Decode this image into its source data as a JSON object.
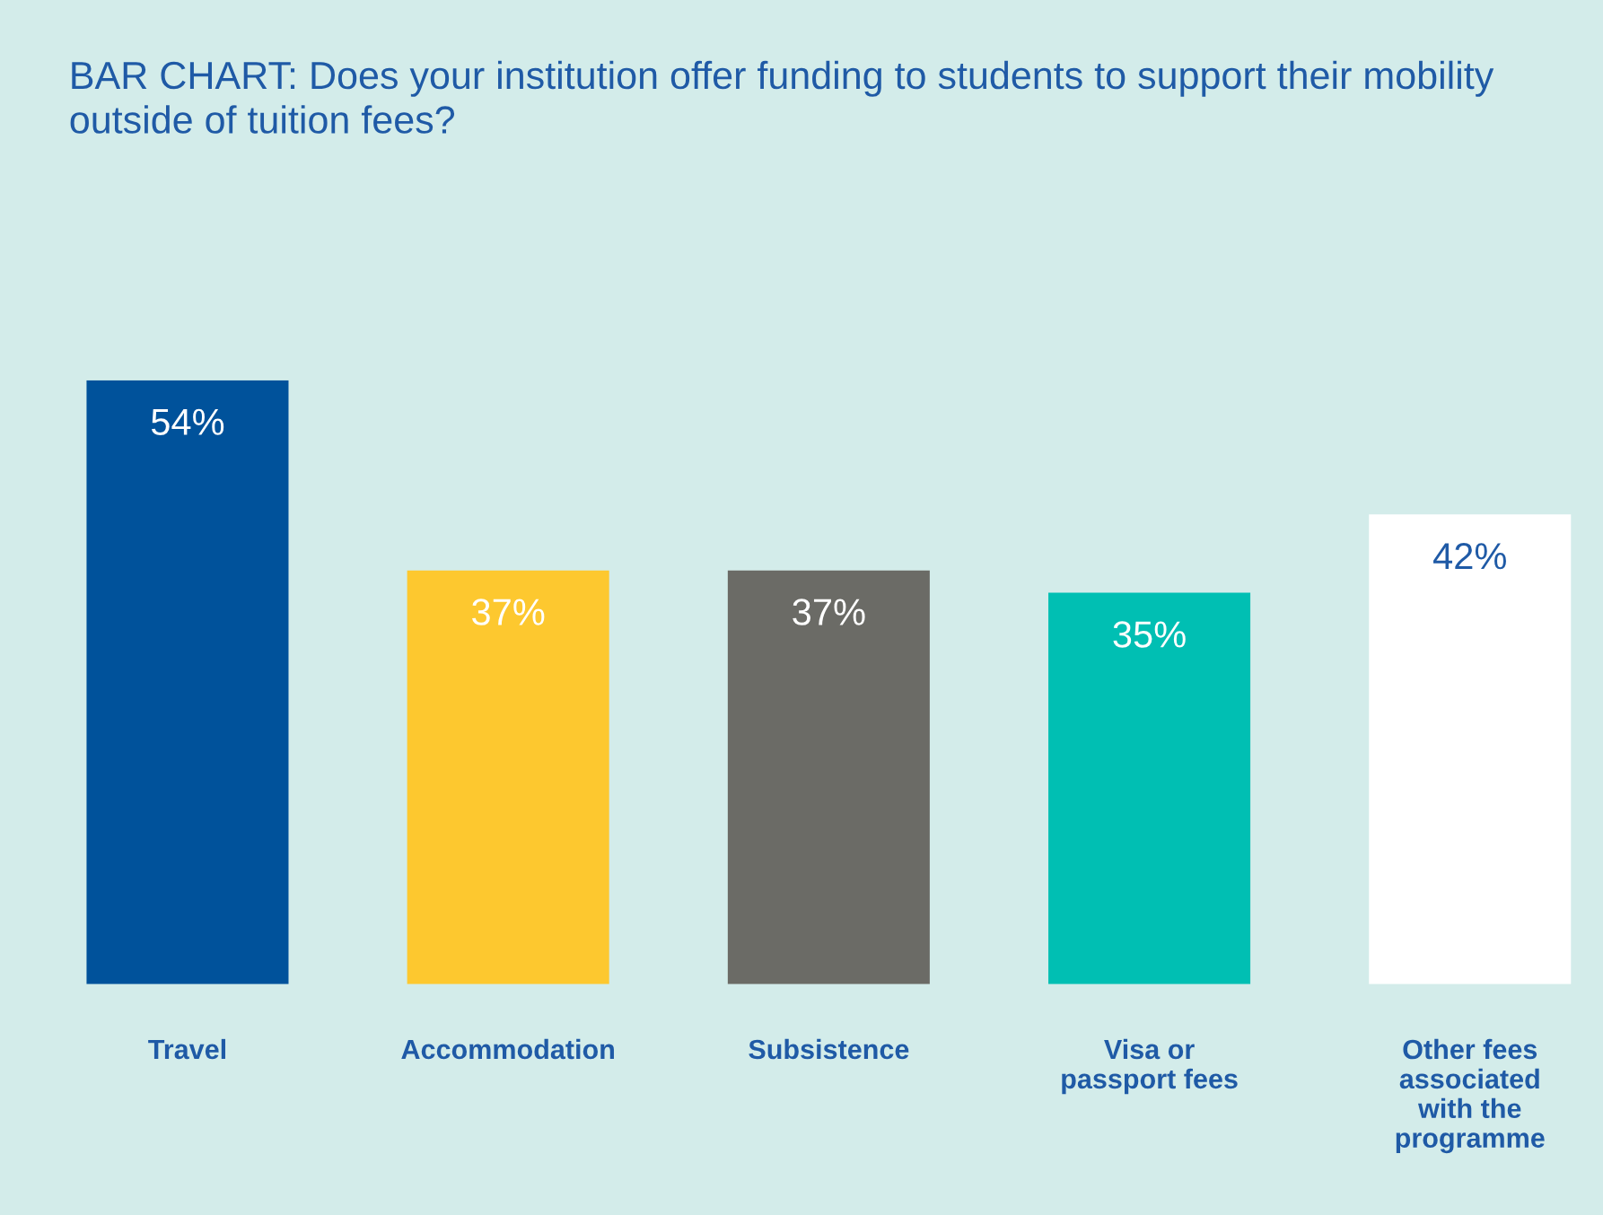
{
  "chart_data": {
    "type": "bar",
    "title": "BAR CHART: Does your institution offer funding to students to support their mobility outside of tuition fees?",
    "categories": [
      "Travel",
      "Accommodation",
      "Subsistence",
      "Visa or\npassport fees",
      "Other fees\nassociated\nwith the\nprogramme"
    ],
    "values": [
      54,
      37,
      37,
      35,
      42
    ],
    "colors": [
      "#00529b",
      "#fdc82f",
      "#6b6b66",
      "#00bfb3",
      "#ffffff"
    ],
    "data_labels": true,
    "value_labels": [
      "54%",
      "37%",
      "37%",
      "35%",
      "42%"
    ],
    "grid": false,
    "legend": false
  }
}
